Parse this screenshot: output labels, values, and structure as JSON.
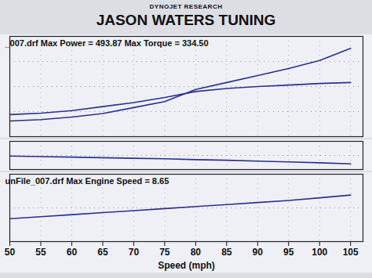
{
  "chart_data": [
    {
      "type": "line",
      "header": "DYNOJET RESEARCH",
      "title": "JASON WATERS TUNING",
      "annotation": "_007.drf Max Power = 493.87 Max Torque = 334.50",
      "x": [
        50,
        55,
        60,
        65,
        70,
        75,
        80,
        85,
        90,
        95,
        100,
        105
      ],
      "series": [
        {
          "color": "#2b2f8f",
          "values": [
            15.6,
            17,
            19.5,
            23,
            29,
            35,
            47,
            54,
            61,
            68,
            76,
            88
          ]
        },
        {
          "color": "#2b2f8f",
          "values": [
            22,
            23.4,
            26,
            30,
            34,
            39,
            45,
            48,
            50,
            51.5,
            53,
            54
          ]
        }
      ],
      "xlim": [
        50,
        107
      ],
      "xticks": [
        50,
        55,
        60,
        65,
        70,
        75,
        80,
        85,
        90,
        95,
        100,
        105
      ],
      "ylim": [
        0,
        100
      ],
      "yticks": [
        0,
        25,
        50,
        75,
        100
      ],
      "grid": true,
      "tick_labels": false
    },
    {
      "type": "line",
      "x": [
        50,
        55,
        60,
        65,
        70,
        75,
        80,
        85,
        90,
        95,
        100,
        105
      ],
      "series": [
        {
          "color": "#2b2f8f",
          "values": [
            48,
            46,
            44,
            42,
            40,
            38,
            35,
            33,
            30,
            27,
            24,
            20
          ]
        }
      ],
      "xlim": [
        50,
        107
      ],
      "xticks": [
        50,
        55,
        60,
        65,
        70,
        75,
        80,
        85,
        90,
        95,
        100,
        105
      ],
      "ylim": [
        0,
        100
      ],
      "yticks": [
        0,
        50,
        100
      ],
      "grid": true,
      "tick_labels": false
    },
    {
      "type": "line",
      "annotation": "unFile_007.drf Max Engine Speed = 8.65",
      "xlabel": "Speed (mph)",
      "x": [
        50,
        55,
        60,
        65,
        70,
        75,
        80,
        85,
        90,
        95,
        100,
        105
      ],
      "series": [
        {
          "color": "#2b2f8f",
          "values": [
            34,
            37,
            40,
            43,
            46,
            49,
            52,
            55,
            58,
            61,
            65,
            69
          ]
        }
      ],
      "xlim": [
        50,
        107
      ],
      "xticks": [
        50,
        55,
        60,
        65,
        70,
        75,
        80,
        85,
        90,
        95,
        100,
        105
      ],
      "ylim": [
        0,
        100
      ],
      "yticks": [
        0,
        50,
        100
      ],
      "grid": true,
      "tick_labels": "x"
    }
  ]
}
